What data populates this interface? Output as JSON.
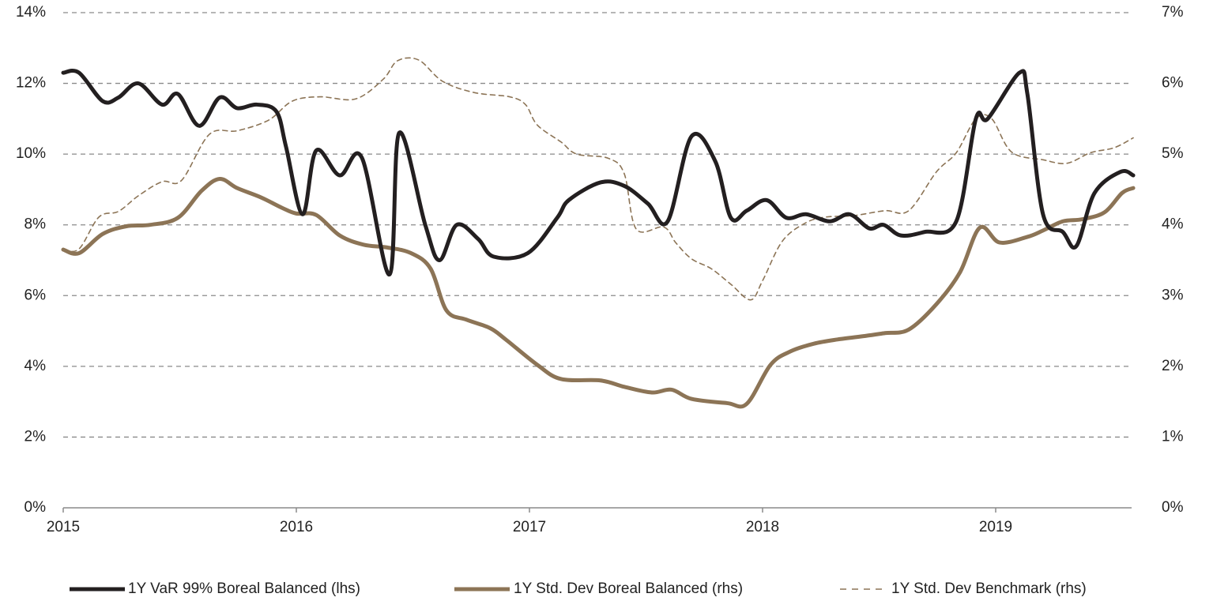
{
  "chart_data": {
    "type": "line",
    "xlim": [
      2015,
      2019.6
    ],
    "xticks": [
      2015,
      2016,
      2017,
      2018,
      2019
    ],
    "ylim": [
      0,
      14
    ],
    "yticks": [
      {
        "value": 0,
        "label": "0%"
      },
      {
        "value": 2,
        "label": "2%"
      },
      {
        "value": 4,
        "label": "4%"
      },
      {
        "value": 6,
        "label": "6%"
      },
      {
        "value": 8,
        "label": "8%"
      },
      {
        "value": 10,
        "label": "10%"
      },
      {
        "value": 12,
        "label": "12%"
      },
      {
        "value": 14,
        "label": "14%"
      }
    ],
    "y2lim": [
      0,
      7
    ],
    "y2ticks": [
      {
        "value": 0,
        "label": "0%"
      },
      {
        "value": 1,
        "label": "1%"
      },
      {
        "value": 2,
        "label": "2%"
      },
      {
        "value": 3,
        "label": "3%"
      },
      {
        "value": 4,
        "label": "4%"
      },
      {
        "value": 5,
        "label": "5%"
      },
      {
        "value": 6,
        "label": "6%"
      },
      {
        "value": 7,
        "label": "7%"
      }
    ],
    "grid": true,
    "legend": "bottom",
    "series": [
      {
        "name": "1Y VaR 99% Boreal Balanced (lhs)",
        "color": "#231f20",
        "axis": "y",
        "dash": false,
        "x": [
          2015.0,
          2015.068,
          2015.169,
          2015.237,
          2015.322,
          2015.424,
          2015.492,
          2015.583,
          2015.671,
          2015.746,
          2015.831,
          2015.915,
          2015.956,
          2016.027,
          2016.085,
          2016.186,
          2016.281,
          2016.4,
          2016.441,
          2016.553,
          2016.614,
          2016.688,
          2016.78,
          2016.847,
          2016.993,
          2017.119,
          2017.169,
          2017.305,
          2017.407,
          2017.508,
          2017.593,
          2017.695,
          2017.797,
          2017.864,
          2017.932,
          2018.017,
          2018.102,
          2018.186,
          2018.288,
          2018.373,
          2018.458,
          2018.519,
          2018.593,
          2018.695,
          2018.831,
          2018.915,
          2018.966,
          2019.102,
          2019.136,
          2019.203,
          2019.288,
          2019.346,
          2019.424,
          2019.536,
          2019.59
        ],
        "values": [
          12.3,
          12.3,
          11.5,
          11.6,
          12.0,
          11.4,
          11.7,
          10.8,
          11.6,
          11.3,
          11.4,
          11.2,
          10.2,
          8.3,
          10.1,
          9.4,
          9.9,
          6.6,
          10.6,
          8.0,
          7.0,
          8.0,
          7.6,
          7.1,
          7.2,
          8.2,
          8.7,
          9.2,
          9.1,
          8.6,
          8.1,
          10.5,
          9.8,
          8.2,
          8.4,
          8.7,
          8.2,
          8.3,
          8.1,
          8.3,
          7.9,
          8.0,
          7.7,
          7.8,
          8.1,
          11.0,
          11.0,
          12.3,
          11.7,
          8.3,
          7.8,
          7.4,
          8.9,
          9.5,
          9.4
        ]
      },
      {
        "name": "1Y Std. Dev Boreal Balanced (rhs)",
        "color": "#8c7456",
        "axis": "y2",
        "dash": false,
        "x": [
          2015.0,
          2015.068,
          2015.169,
          2015.271,
          2015.373,
          2015.492,
          2015.593,
          2015.671,
          2015.746,
          2015.847,
          2015.939,
          2016.0,
          2016.085,
          2016.186,
          2016.288,
          2016.39,
          2016.492,
          2016.576,
          2016.644,
          2016.729,
          2016.831,
          2016.898,
          2017.034,
          2017.136,
          2017.305,
          2017.407,
          2017.525,
          2017.61,
          2017.695,
          2017.847,
          2017.932,
          2018.034,
          2018.119,
          2018.22,
          2018.322,
          2018.441,
          2018.525,
          2018.627,
          2018.746,
          2018.847,
          2018.932,
          2019.017,
          2019.136,
          2019.203,
          2019.288,
          2019.373,
          2019.468,
          2019.542,
          2019.59
        ],
        "values": [
          3.65,
          3.6,
          3.87,
          3.98,
          4.0,
          4.1,
          4.48,
          4.65,
          4.52,
          4.39,
          4.24,
          4.16,
          4.14,
          3.85,
          3.72,
          3.68,
          3.6,
          3.38,
          2.79,
          2.66,
          2.54,
          2.38,
          2.02,
          1.82,
          1.8,
          1.71,
          1.63,
          1.67,
          1.54,
          1.48,
          1.47,
          2.02,
          2.21,
          2.32,
          2.38,
          2.43,
          2.47,
          2.52,
          2.88,
          3.33,
          3.96,
          3.75,
          3.83,
          3.92,
          4.05,
          4.08,
          4.18,
          4.45,
          4.52
        ]
      },
      {
        "name": "1Y Std. Dev Benchmark (rhs)",
        "color": "#8c7456",
        "axis": "y2",
        "dash": true,
        "x": [
          2015.0,
          2015.068,
          2015.153,
          2015.237,
          2015.322,
          2015.424,
          2015.508,
          2015.627,
          2015.746,
          2015.881,
          2015.983,
          2016.102,
          2016.254,
          2016.373,
          2016.434,
          2016.525,
          2016.627,
          2016.763,
          2016.915,
          2016.983,
          2017.034,
          2017.136,
          2017.203,
          2017.339,
          2017.407,
          2017.458,
          2017.576,
          2017.627,
          2017.695,
          2017.78,
          2017.864,
          2017.949,
          2018.0,
          2018.085,
          2018.186,
          2018.271,
          2018.39,
          2018.525,
          2018.627,
          2018.746,
          2018.831,
          2018.915,
          2018.983,
          2019.068,
          2019.203,
          2019.305,
          2019.407,
          2019.508,
          2019.59
        ],
        "values": [
          3.65,
          3.66,
          4.11,
          4.19,
          4.41,
          4.61,
          4.63,
          5.28,
          5.33,
          5.48,
          5.75,
          5.81,
          5.78,
          6.06,
          6.32,
          6.33,
          6.03,
          5.87,
          5.81,
          5.7,
          5.41,
          5.17,
          5.0,
          4.94,
          4.72,
          3.94,
          3.97,
          3.75,
          3.52,
          3.38,
          3.16,
          2.94,
          3.21,
          3.77,
          4.03,
          4.11,
          4.13,
          4.2,
          4.2,
          4.75,
          5.02,
          5.5,
          5.5,
          5.03,
          4.92,
          4.87,
          5.02,
          5.09,
          5.23
        ]
      }
    ]
  }
}
